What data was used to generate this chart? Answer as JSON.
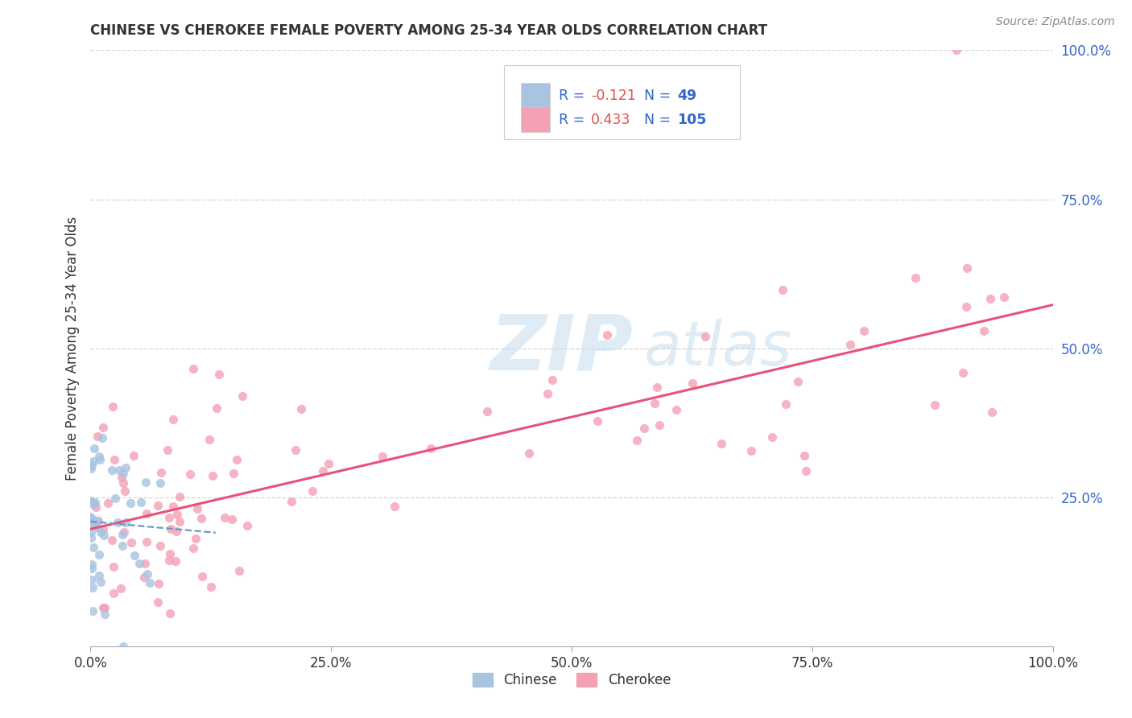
{
  "title": "CHINESE VS CHEROKEE FEMALE POVERTY AMONG 25-34 YEAR OLDS CORRELATION CHART",
  "source": "Source: ZipAtlas.com",
  "ylabel": "Female Poverty Among 25-34 Year Olds",
  "xlim": [
    0,
    1.0
  ],
  "ylim": [
    0,
    1.0
  ],
  "chinese_color": "#a8c4e0",
  "cherokee_color": "#f4a0b5",
  "chinese_line_color": "#6699cc",
  "cherokee_line_color": "#e8517a",
  "legend_blue": "#3366cc",
  "chinese_R": -0.121,
  "cherokee_R": 0.433,
  "n_chinese": 49,
  "n_cherokee": 105,
  "grid_color": "#cccccc",
  "title_color": "#333333",
  "source_color": "#888888",
  "ylabel_color": "#333333",
  "tick_label_color": "#333333",
  "right_tick_color": "#3366cc",
  "watermark_zip_color": "#c5ddf0",
  "watermark_atlas_color": "#c5ddf0"
}
